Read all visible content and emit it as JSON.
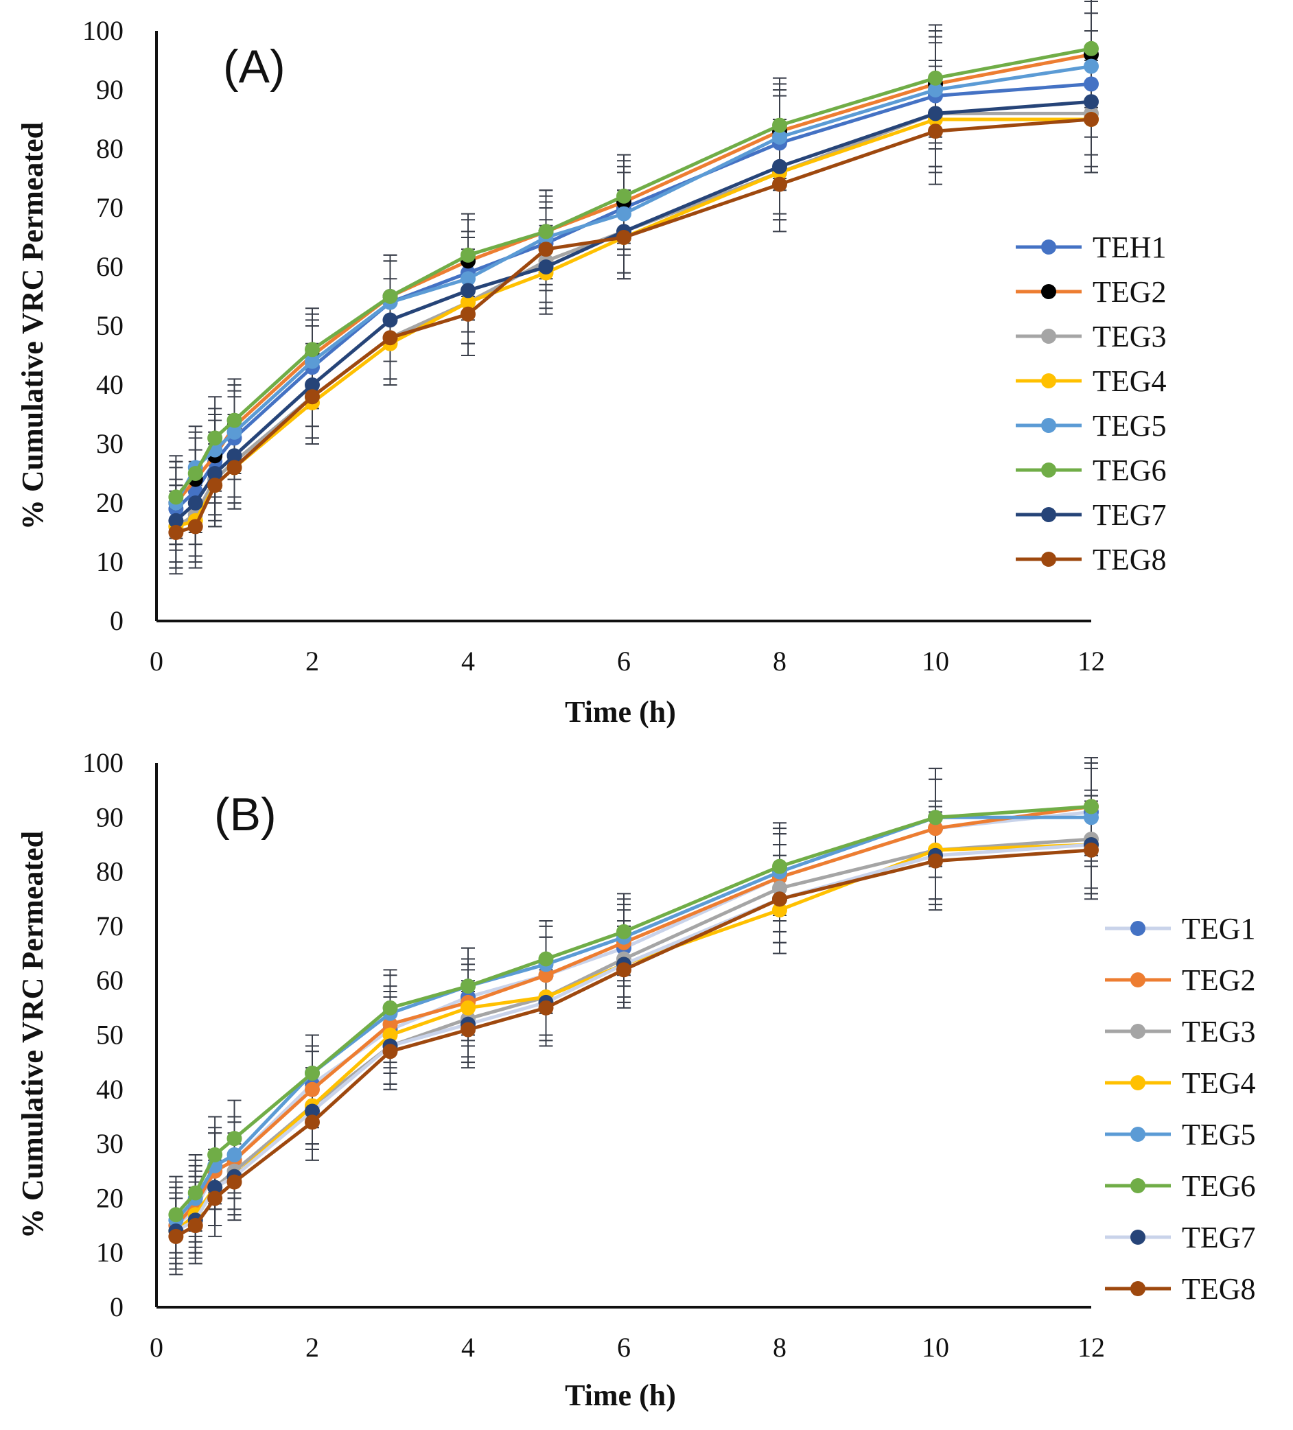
{
  "chart_data": [
    {
      "type": "line",
      "panel_label": "(A)",
      "xlabel": "Time (h)",
      "ylabel": "% Cumulative VRC Permeated",
      "xlim": [
        0,
        12
      ],
      "ylim": [
        0,
        100
      ],
      "xticks": [
        0,
        2,
        4,
        6,
        8,
        10,
        12
      ],
      "yticks": [
        0,
        10,
        20,
        30,
        40,
        50,
        60,
        70,
        80,
        90,
        100
      ],
      "grid": false,
      "legend_position": "right",
      "error_bars": true,
      "x": [
        0.25,
        0.5,
        0.75,
        1,
        2,
        3,
        4,
        5,
        6,
        8,
        10,
        12
      ],
      "series": [
        {
          "name": "TEH1",
          "color": "#4472c4",
          "marker_color": "#4472c4",
          "values": [
            19,
            22,
            27,
            31,
            43,
            54,
            59,
            64,
            70,
            81,
            89,
            91
          ],
          "errors": [
            7,
            7,
            7,
            7,
            7,
            7,
            7,
            7,
            7,
            8,
            9,
            9
          ]
        },
        {
          "name": "TEG2",
          "color": "#ed7d31",
          "marker_color": "#000000",
          "values": [
            20,
            24,
            28,
            33,
            45,
            55,
            61,
            66,
            71,
            83,
            91,
            96
          ],
          "errors": [
            7,
            7,
            7,
            7,
            7,
            7,
            7,
            7,
            7,
            8,
            9,
            9
          ]
        },
        {
          "name": "TEG3",
          "color": "#a5a5a5",
          "marker_color": "#a5a5a5",
          "values": [
            16,
            18,
            24,
            27,
            38,
            48,
            54,
            61,
            66,
            76,
            86,
            86
          ],
          "errors": [
            7,
            7,
            7,
            7,
            7,
            7,
            7,
            7,
            7,
            8,
            9,
            9
          ]
        },
        {
          "name": "TEG4",
          "color": "#ffc000",
          "marker_color": "#ffc000",
          "values": [
            16,
            17,
            23,
            26,
            37,
            47,
            54,
            59,
            65,
            76,
            85,
            85
          ],
          "errors": [
            7,
            7,
            7,
            7,
            7,
            7,
            7,
            7,
            7,
            8,
            9,
            9
          ]
        },
        {
          "name": "TEG5",
          "color": "#5b9bd5",
          "marker_color": "#5b9bd5",
          "values": [
            20,
            26,
            29,
            32,
            44,
            54,
            58,
            65,
            69,
            82,
            90,
            94
          ],
          "errors": [
            7,
            7,
            7,
            7,
            7,
            7,
            7,
            7,
            7,
            8,
            9,
            9
          ]
        },
        {
          "name": "TEG6",
          "color": "#70ad47",
          "marker_color": "#70ad47",
          "values": [
            21,
            25,
            31,
            34,
            46,
            55,
            62,
            66,
            72,
            84,
            92,
            97
          ],
          "errors": [
            7,
            7,
            7,
            7,
            7,
            7,
            7,
            7,
            7,
            8,
            9,
            9
          ]
        },
        {
          "name": "TEG7",
          "color": "#264478",
          "marker_color": "#264478",
          "values": [
            17,
            20,
            25,
            28,
            40,
            51,
            56,
            60,
            66,
            77,
            86,
            88
          ],
          "errors": [
            7,
            7,
            7,
            7,
            7,
            7,
            7,
            7,
            7,
            8,
            9,
            9
          ]
        },
        {
          "name": "TEG8",
          "color": "#9e480e",
          "marker_color": "#9e480e",
          "values": [
            15,
            16,
            23,
            26,
            38,
            48,
            52,
            63,
            65,
            74,
            83,
            85
          ],
          "errors": [
            7,
            7,
            7,
            7,
            7,
            7,
            7,
            7,
            7,
            8,
            9,
            9
          ]
        }
      ]
    },
    {
      "type": "line",
      "panel_label": "(B)",
      "xlabel": "Time (h)",
      "ylabel": "% Cumulative VRC Permeated",
      "xlim": [
        0,
        12
      ],
      "ylim": [
        0,
        100
      ],
      "xticks": [
        0,
        2,
        4,
        6,
        8,
        10,
        12
      ],
      "yticks": [
        0,
        10,
        20,
        30,
        40,
        50,
        60,
        70,
        80,
        90,
        100
      ],
      "grid": false,
      "legend_position": "right",
      "error_bars": true,
      "x": [
        0.25,
        0.5,
        0.75,
        1,
        2,
        3,
        4,
        5,
        6,
        8,
        10,
        12
      ],
      "series": [
        {
          "name": "TEG1",
          "color": "#c9d3ea",
          "marker_color": "#4472c4",
          "values": [
            15,
            18,
            25,
            27,
            41,
            51,
            57,
            61,
            66,
            79,
            88,
            91
          ],
          "errors": [
            7,
            7,
            7,
            7,
            7,
            7,
            7,
            7,
            7,
            8,
            9,
            9
          ]
        },
        {
          "name": "TEG2",
          "color": "#ed7d31",
          "marker_color": "#ed7d31",
          "values": [
            15,
            19,
            25,
            27,
            40,
            52,
            56,
            61,
            67,
            79,
            88,
            92
          ],
          "errors": [
            7,
            7,
            7,
            7,
            7,
            7,
            7,
            7,
            7,
            8,
            9,
            9
          ]
        },
        {
          "name": "TEG3",
          "color": "#a5a5a5",
          "marker_color": "#a5a5a5",
          "values": [
            14,
            17,
            22,
            25,
            37,
            48,
            53,
            57,
            64,
            77,
            84,
            86
          ],
          "errors": [
            7,
            7,
            7,
            7,
            7,
            7,
            7,
            7,
            7,
            8,
            9,
            9
          ]
        },
        {
          "name": "TEG4",
          "color": "#ffc000",
          "marker_color": "#ffc000",
          "values": [
            14,
            17,
            22,
            24,
            37,
            50,
            55,
            57,
            63,
            73,
            84,
            85
          ],
          "errors": [
            7,
            7,
            7,
            7,
            7,
            7,
            7,
            7,
            7,
            8,
            9,
            9
          ]
        },
        {
          "name": "TEG5",
          "color": "#5b9bd5",
          "marker_color": "#5b9bd5",
          "values": [
            16,
            20,
            26,
            28,
            43,
            54,
            59,
            63,
            68,
            80,
            90,
            90
          ],
          "errors": [
            7,
            7,
            7,
            7,
            7,
            7,
            7,
            7,
            7,
            8,
            9,
            9
          ]
        },
        {
          "name": "TEG6",
          "color": "#70ad47",
          "marker_color": "#70ad47",
          "values": [
            17,
            21,
            28,
            31,
            43,
            55,
            59,
            64,
            69,
            81,
            90,
            92
          ],
          "errors": [
            7,
            7,
            7,
            7,
            7,
            7,
            7,
            7,
            7,
            8,
            9,
            9
          ]
        },
        {
          "name": "TEG7",
          "color": "#c9d3ea",
          "marker_color": "#264478",
          "values": [
            14,
            16,
            22,
            24,
            36,
            48,
            52,
            56,
            63,
            75,
            83,
            85
          ],
          "errors": [
            7,
            7,
            7,
            7,
            7,
            7,
            7,
            7,
            7,
            8,
            9,
            9
          ]
        },
        {
          "name": "TEG8",
          "color": "#9e480e",
          "marker_color": "#9e480e",
          "values": [
            13,
            15,
            20,
            23,
            34,
            47,
            51,
            55,
            62,
            75,
            82,
            84
          ],
          "errors": [
            7,
            7,
            7,
            7,
            7,
            7,
            7,
            7,
            7,
            8,
            9,
            9
          ]
        }
      ]
    }
  ]
}
